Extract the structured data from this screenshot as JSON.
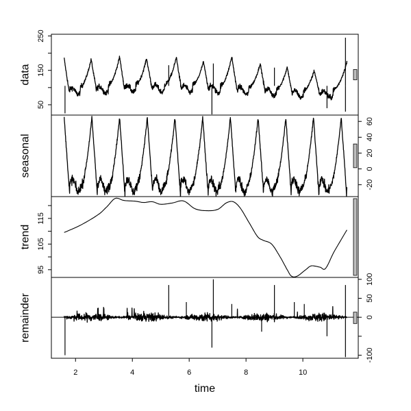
{
  "chart_data": {
    "type": "line",
    "title": "",
    "xlabel": "time",
    "x_range": [
      1.15,
      11.95
    ],
    "x_ticks": [
      2,
      4,
      6,
      8,
      10
    ],
    "grid": false,
    "legend": null,
    "panels": [
      {
        "name": "data",
        "ylabel": "data",
        "axis_side": "left",
        "y_ticks": [
          50,
          150,
          250
        ],
        "y_minor_ticks": [
          100,
          200
        ],
        "ylim": [
          20,
          255
        ],
        "scale_bar_height_units": 30,
        "description": "Raw series with ~yearly seasonal peaks (~175-200) over a baseline of ~90-110; spikes near x=1.6 (down to ~25), x=5.3 (~165), x=6.8 (~170 then dip to ~20), x=9.0 (~160), x=10.8 (down to ~40), x=11.5 (up to ~245 and down ~30)",
        "series": {
          "x_start": 1.6,
          "x_end": 11.55,
          "peaks_x": [
            1.6,
            2.55,
            3.55,
            4.5,
            5.55,
            6.5,
            7.5,
            8.5,
            9.45,
            10.4,
            11.5
          ],
          "peaks_y": [
            185,
            182,
            190,
            185,
            188,
            175,
            190,
            170,
            160,
            150,
            160
          ],
          "baseline_y": [
            100,
            105,
            108,
            110,
            108,
            108,
            105,
            100,
            95,
            90,
            95
          ],
          "noise_amp": 8,
          "spikes": [
            {
              "x": 1.63,
              "y": 25
            },
            {
              "x": 5.28,
              "y": 165
            },
            {
              "x": 6.8,
              "y": 22
            },
            {
              "x": 6.85,
              "y": 170
            },
            {
              "x": 9.0,
              "y": 158
            },
            {
              "x": 10.85,
              "y": 40
            },
            {
              "x": 11.5,
              "y": 245
            },
            {
              "x": 11.5,
              "y": 30
            }
          ]
        }
      },
      {
        "name": "seasonal",
        "ylabel": "seasonal",
        "axis_side": "right",
        "y_ticks": [
          -20,
          0,
          20,
          40,
          60
        ],
        "ylim": [
          -35,
          68
        ],
        "scale_bar_height_units": 30,
        "description": "Repeating sawtooth seasonal pattern, period ~0.97, peaks ~65, troughs ~ -33, noisy trough region",
        "series": {
          "x_start": 1.6,
          "x_end": 11.55,
          "period": 0.975,
          "first_peak_x": 1.6,
          "peak_y": 65,
          "trough_y": -33,
          "noise_amp": 6
        }
      },
      {
        "name": "trend",
        "ylabel": "trend",
        "axis_side": "left",
        "y_ticks": [
          95,
          105,
          115
        ],
        "y_minor_ticks": [
          100,
          110,
          120
        ],
        "ylim": [
          92,
          123.5
        ],
        "scale_bar_height_units": 30,
        "description": "Smooth trend rising to ~123 around x=3.4, plateau ~120-122 until x=7.6, then decline to ~92 at x=9.6, small recovery, rising to ~110 at end",
        "series": {
          "x": [
            1.6,
            2.2,
            2.8,
            3.1,
            3.4,
            3.7,
            4.1,
            4.4,
            4.7,
            5.0,
            5.4,
            5.8,
            6.2,
            6.6,
            7.0,
            7.3,
            7.55,
            7.8,
            8.1,
            8.4,
            8.6,
            8.9,
            9.2,
            9.45,
            9.6,
            9.8,
            10.1,
            10.3,
            10.6,
            10.8,
            11.1,
            11.55
          ],
          "y": [
            109.5,
            112.5,
            116.5,
            119.5,
            122.8,
            122.0,
            121.7,
            121.2,
            121.5,
            120.5,
            121.0,
            121.8,
            118.8,
            118.0,
            118.5,
            121.0,
            121.5,
            119.0,
            113.5,
            108.0,
            106.5,
            105.0,
            100.0,
            95.0,
            92.5,
            92.5,
            95.0,
            96.5,
            96.0,
            95.5,
            102.0,
            110.5
          ]
        }
      },
      {
        "name": "remainder",
        "ylabel": "remainder",
        "axis_side": "right",
        "y_ticks": [
          -100,
          0,
          50,
          100
        ],
        "y_minor_ticks": [
          -50
        ],
        "ylim": [
          -108,
          105
        ],
        "zero_line": true,
        "scale_bar_height_units": 30,
        "description": "Noise around zero (+/- ~15), with spikes: x=1.63 (-100), x=5.28 (+85), x=6.8 (+100 / -80), x=8.55 (-35), x=9.0 (+85), x=10.85 (-50), x=11.5 (+85 / -105)",
        "series": {
          "x_start": 1.6,
          "x_end": 11.55,
          "noise_amp": 12,
          "spikes": [
            {
              "x": 1.63,
              "y": -100
            },
            {
              "x": 2.8,
              "y": 25
            },
            {
              "x": 5.28,
              "y": 85
            },
            {
              "x": 5.9,
              "y": 40
            },
            {
              "x": 6.8,
              "y": -80
            },
            {
              "x": 6.85,
              "y": 100
            },
            {
              "x": 7.5,
              "y": 35
            },
            {
              "x": 8.55,
              "y": -38
            },
            {
              "x": 9.0,
              "y": 85
            },
            {
              "x": 9.7,
              "y": 40
            },
            {
              "x": 10.05,
              "y": 35
            },
            {
              "x": 10.85,
              "y": -50
            },
            {
              "x": 11.5,
              "y": 85
            },
            {
              "x": 11.5,
              "y": -105
            }
          ]
        }
      }
    ]
  },
  "labels": {
    "data": "data",
    "seasonal": "seasonal",
    "trend": "trend",
    "remainder": "remainder",
    "time": "time"
  },
  "colors": {
    "line": "#000000",
    "frame": "#000000",
    "scale_bar_fill": "#bebebe",
    "background": "#ffffff"
  }
}
